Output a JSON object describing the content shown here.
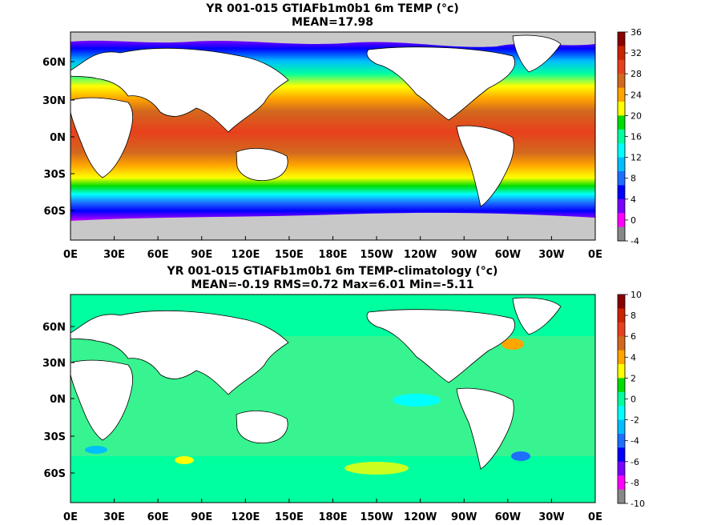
{
  "panels": [
    {
      "title": "YR 001-015 GTIAFb1m0b1 6m TEMP (°c)",
      "subtitle": "MEAN=17.98",
      "x_ticks": [
        "0E",
        "30E",
        "60E",
        "90E",
        "120E",
        "150E",
        "180E",
        "150W",
        "120W",
        "90W",
        "60W",
        "30W",
        "0E"
      ],
      "y_ticks": [
        "60N",
        "30N",
        "0N",
        "30S",
        "60S"
      ],
      "colorbar_ticks": [
        "36",
        "32",
        "28",
        "24",
        "20",
        "16",
        "12",
        "8",
        "4",
        "0",
        "-4"
      ],
      "colorbar_colors": [
        "#8b0000",
        "#cc2200",
        "#e8401c",
        "#d2691e",
        "#ffa500",
        "#ffff00",
        "#00dd00",
        "#00ff9f",
        "#00ffff",
        "#00bfff",
        "#1e6fff",
        "#0000ff",
        "#7a00ff",
        "#ff00ff",
        "#888888"
      ]
    },
    {
      "title": "YR 001-015 GTIAFb1m0b1 6m TEMP-climatology (°c)",
      "subtitle": "MEAN=-0.19   RMS=0.72   Max=6.01   Min=-5.11",
      "x_ticks": [
        "0E",
        "30E",
        "60E",
        "90E",
        "120E",
        "150E",
        "180E",
        "150W",
        "120W",
        "90W",
        "60W",
        "30W",
        "0E"
      ],
      "y_ticks": [
        "60N",
        "30N",
        "0N",
        "30S",
        "60S"
      ],
      "colorbar_ticks": [
        "10",
        "8",
        "6",
        "4",
        "2",
        "0",
        "-2",
        "-4",
        "-6",
        "-8",
        "-10"
      ],
      "colorbar_colors": [
        "#8b0000",
        "#cc2200",
        "#e8401c",
        "#d2691e",
        "#ffa500",
        "#ffff00",
        "#00dd00",
        "#00ff9f",
        "#00ffff",
        "#00bfff",
        "#1e6fff",
        "#0000ff",
        "#7a00ff",
        "#ff00ff",
        "#888888"
      ]
    }
  ],
  "colors": {
    "land": "#ffffff",
    "ice": "#c8c8c8",
    "coast": "#000000"
  }
}
